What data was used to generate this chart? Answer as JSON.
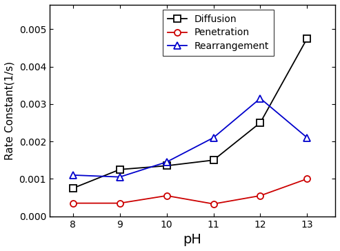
{
  "pH": [
    8,
    9,
    10,
    11,
    12,
    13
  ],
  "diffusion": [
    0.00075,
    0.00125,
    0.00135,
    0.0015,
    0.0025,
    0.00475
  ],
  "penetration": [
    0.00035,
    0.00035,
    0.00055,
    0.00033,
    0.00055,
    0.001
  ],
  "rearrangement": [
    0.0011,
    0.00105,
    0.00145,
    0.0021,
    0.00315,
    0.0021
  ],
  "diffusion_color": "#000000",
  "penetration_color": "#cc0000",
  "rearrangement_color": "#0000cc",
  "xlabel": "pH",
  "ylabel": "Rate Constant(1/s)",
  "ylim": [
    0.0,
    0.00565
  ],
  "yticks": [
    0.0,
    0.001,
    0.002,
    0.003,
    0.004,
    0.005
  ],
  "xticks": [
    8,
    9,
    10,
    11,
    12,
    13
  ],
  "legend_labels": [
    "Diffusion",
    "Penetration",
    "Rearrangement"
  ],
  "background_color": "#ffffff",
  "linewidth": 1.3,
  "markersize": 6.5,
  "markeredgewidth": 1.3
}
